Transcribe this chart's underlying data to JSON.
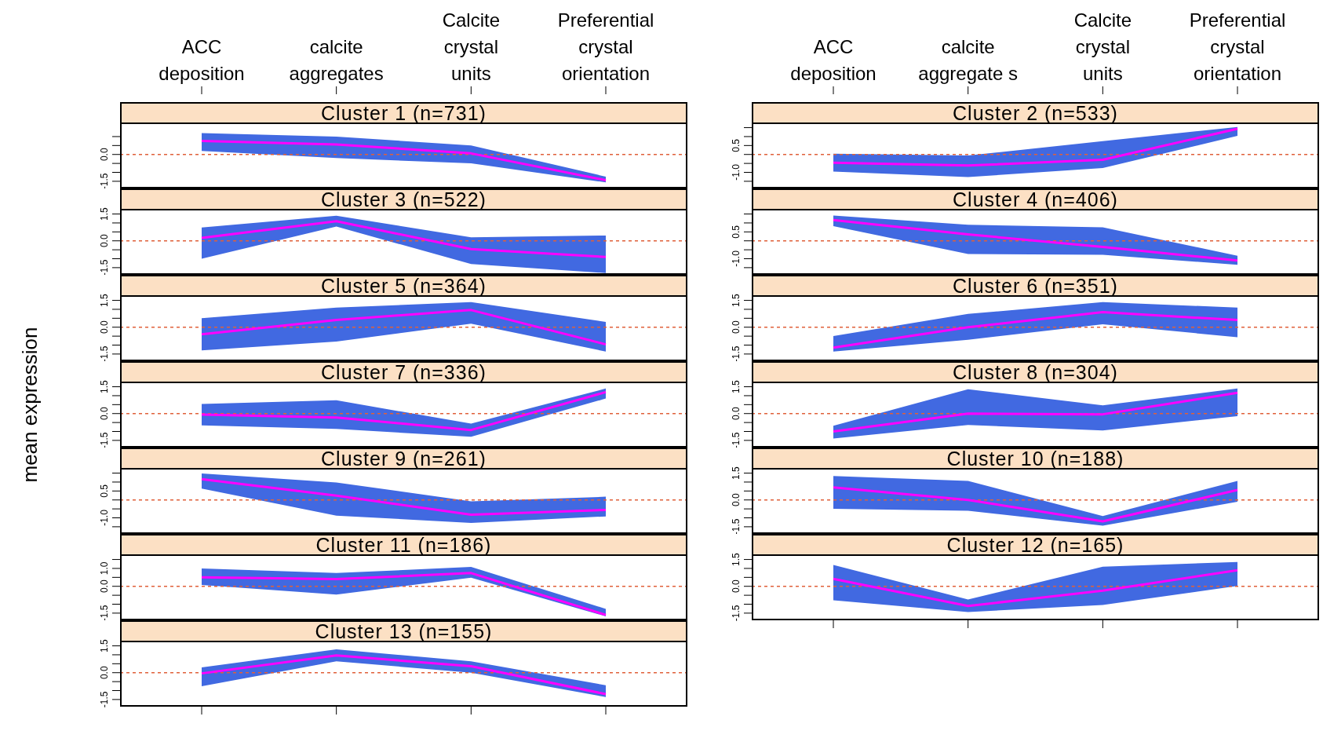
{
  "chart_data": [
    {
      "type": "line",
      "title": "Cluster 1 (n=731)",
      "categories": [
        "ACC deposition",
        "calcite aggregates",
        "Calcite crystal units",
        "Preferential crystal orientation"
      ],
      "marker": "none",
      "ylim": [
        -1.9,
        1.7
      ],
      "yticks": [
        {
          "value": -1.5,
          "label": "-1.5"
        },
        {
          "value": -1,
          "label": null
        },
        {
          "value": -0.5,
          "label": null
        },
        {
          "value": 0,
          "label": "0.0"
        },
        {
          "value": 0.5,
          "label": null
        },
        {
          "value": 1,
          "label": null
        }
      ],
      "ref_lines": [
        {
          "axis": "y",
          "value": 0,
          "color": "#e0603a",
          "line_style": "dashed"
        }
      ],
      "series": [
        {
          "color": "#ff00ff",
          "values": [
            0.76,
            0.56,
            0.06,
            -1.44
          ],
          "lower": [
            0.2,
            -0.2,
            -0.5,
            -1.56
          ],
          "upper": [
            1.2,
            1.0,
            0.5,
            -1.24
          ]
        }
      ]
    },
    {
      "type": "line",
      "title": "Cluster 2 (n=533)",
      "categories": [
        "ACC deposition",
        "calcite aggregate s",
        "Calcite crystal units",
        "Preferential crystal orientation"
      ],
      "marker": "none",
      "ylim": [
        -1.9,
        1.7
      ],
      "yticks": [
        {
          "value": -1.5,
          "label": null
        },
        {
          "value": -1,
          "label": "-1.0"
        },
        {
          "value": -0.5,
          "label": null
        },
        {
          "value": 0,
          "label": null
        },
        {
          "value": 0.5,
          "label": "0.5"
        },
        {
          "value": 1,
          "label": null
        },
        {
          "value": 1.5,
          "label": null
        }
      ],
      "ref_lines": [
        {
          "axis": "y",
          "value": 0,
          "color": "#e0603a",
          "line_style": "dashed"
        }
      ],
      "series": [
        {
          "color": "#ff00ff",
          "values": [
            -0.46,
            -0.62,
            -0.3,
            1.44
          ],
          "lower": [
            -0.96,
            -1.26,
            -0.76,
            1.04
          ],
          "upper": [
            0.04,
            -0.06,
            0.74,
            1.54
          ]
        }
      ]
    },
    {
      "type": "line",
      "title": "Cluster 3 (n=522)",
      "categories": [
        null,
        null,
        null,
        null
      ],
      "tick_labels": "y",
      "marker": "none",
      "ylim": [
        -1.9,
        1.7
      ],
      "yticks": [
        {
          "value": -1.5,
          "label": "-1.5"
        },
        {
          "value": -1,
          "label": null
        },
        {
          "value": -0.5,
          "label": null
        },
        {
          "value": 0,
          "label": "0.0"
        },
        {
          "value": 0.5,
          "label": null
        },
        {
          "value": 1,
          "label": null
        },
        {
          "value": 1.5,
          "label": "1.5"
        }
      ],
      "ref_lines": [
        {
          "axis": "y",
          "value": 0,
          "color": "#e0603a",
          "line_style": "dashed"
        }
      ],
      "series": [
        {
          "color": "#ff00ff",
          "values": [
            0.16,
            1.1,
            -0.46,
            -0.9
          ],
          "lower": [
            -1.0,
            0.8,
            -1.3,
            -1.8
          ],
          "upper": [
            0.74,
            1.4,
            0.2,
            0.3
          ]
        }
      ]
    },
    {
      "type": "line",
      "title": "Cluster 4 (n=406)",
      "categories": [
        null,
        null,
        null,
        null
      ],
      "tick_labels": "y",
      "marker": "none",
      "ylim": [
        -1.9,
        1.7
      ],
      "yticks": [
        {
          "value": -1.5,
          "label": null
        },
        {
          "value": -1,
          "label": "-1.0"
        },
        {
          "value": -0.5,
          "label": null
        },
        {
          "value": 0,
          "label": null
        },
        {
          "value": 0.5,
          "label": "0.5"
        },
        {
          "value": 1,
          "label": null
        },
        {
          "value": 1.5,
          "label": null
        }
      ],
      "ref_lines": [
        {
          "axis": "y",
          "value": 0,
          "color": "#e0603a",
          "line_style": "dashed"
        }
      ],
      "series": [
        {
          "color": "#ff00ff",
          "values": [
            1.16,
            0.36,
            -0.34,
            -1.1
          ],
          "lower": [
            0.82,
            -0.74,
            -0.78,
            -1.34
          ],
          "upper": [
            1.42,
            0.9,
            0.76,
            -0.84
          ]
        }
      ]
    },
    {
      "type": "line",
      "title": "Cluster 5 (n=364)",
      "categories": [
        null,
        null,
        null,
        null
      ],
      "tick_labels": "y",
      "marker": "none",
      "ylim": [
        -1.9,
        1.7
      ],
      "yticks": [
        {
          "value": -1.5,
          "label": "-1.5"
        },
        {
          "value": -1,
          "label": null
        },
        {
          "value": -0.5,
          "label": null
        },
        {
          "value": 0,
          "label": "0.0"
        },
        {
          "value": 0.5,
          "label": null
        },
        {
          "value": 1,
          "label": null
        },
        {
          "value": 1.5,
          "label": "1.5"
        }
      ],
      "ref_lines": [
        {
          "axis": "y",
          "value": 0,
          "color": "#e0603a",
          "line_style": "dashed"
        }
      ],
      "series": [
        {
          "color": "#ff00ff",
          "values": [
            -0.4,
            0.4,
            0.96,
            -0.96
          ],
          "lower": [
            -1.3,
            -0.8,
            0.2,
            -1.36
          ],
          "upper": [
            0.5,
            1.1,
            1.4,
            0.3
          ]
        }
      ]
    },
    {
      "type": "line",
      "title": "Cluster 6 (n=351)",
      "categories": [
        null,
        null,
        null,
        null
      ],
      "tick_labels": "y",
      "marker": "none",
      "ylim": [
        -1.9,
        1.7
      ],
      "yticks": [
        {
          "value": -1.5,
          "label": "-1.5"
        },
        {
          "value": -1,
          "label": null
        },
        {
          "value": -0.5,
          "label": null
        },
        {
          "value": 0,
          "label": "0.0"
        },
        {
          "value": 0.5,
          "label": null
        },
        {
          "value": 1,
          "label": null
        },
        {
          "value": 1.5,
          "label": "1.5"
        }
      ],
      "ref_lines": [
        {
          "axis": "y",
          "value": 0,
          "color": "#e0603a",
          "line_style": "dashed"
        }
      ],
      "series": [
        {
          "color": "#ff00ff",
          "values": [
            -1.14,
            0,
            0.84,
            0.4
          ],
          "lower": [
            -1.36,
            -0.7,
            0.16,
            -0.56
          ],
          "upper": [
            -0.5,
            0.74,
            1.4,
            1.1
          ]
        }
      ]
    },
    {
      "type": "line",
      "title": "Cluster 7 (n=336)",
      "ylabel": "mean expression",
      "categories": [
        null,
        null,
        null,
        null
      ],
      "tick_labels": "y",
      "marker": "none",
      "ylim": [
        -1.9,
        1.7
      ],
      "yticks": [
        {
          "value": -1.5,
          "label": "-1.5"
        },
        {
          "value": -1,
          "label": null
        },
        {
          "value": -0.5,
          "label": null
        },
        {
          "value": 0,
          "label": "0.0"
        },
        {
          "value": 0.5,
          "label": null
        },
        {
          "value": 1,
          "label": null
        },
        {
          "value": 1.5,
          "label": "1.5"
        }
      ],
      "ref_lines": [
        {
          "axis": "y",
          "value": 0,
          "color": "#e0603a",
          "line_style": "dashed"
        }
      ],
      "series": [
        {
          "color": "#ff00ff",
          "values": [
            -0.06,
            -0.22,
            -0.92,
            1.2
          ],
          "lower": [
            -0.66,
            -0.86,
            -1.3,
            0.84
          ],
          "upper": [
            0.54,
            0.74,
            -0.56,
            1.4
          ]
        }
      ]
    },
    {
      "type": "line",
      "title": "Cluster 8 (n=304)",
      "categories": [
        null,
        null,
        null,
        null
      ],
      "tick_labels": "y",
      "marker": "none",
      "ylim": [
        -1.9,
        1.7
      ],
      "yticks": [
        {
          "value": -1.5,
          "label": "-1.5"
        },
        {
          "value": -1,
          "label": null
        },
        {
          "value": -0.5,
          "label": null
        },
        {
          "value": 0,
          "label": "0.0"
        },
        {
          "value": 0.5,
          "label": null
        },
        {
          "value": 1,
          "label": null
        },
        {
          "value": 1.5,
          "label": "1.5"
        }
      ],
      "ref_lines": [
        {
          "axis": "y",
          "value": 0,
          "color": "#e0603a",
          "line_style": "dashed"
        }
      ],
      "series": [
        {
          "color": "#ff00ff",
          "values": [
            -1.0,
            0,
            -0.04,
            1.16
          ],
          "lower": [
            -1.4,
            -0.64,
            -0.94,
            -0.14
          ],
          "upper": [
            -0.68,
            1.36,
            0.46,
            1.4
          ]
        }
      ]
    },
    {
      "type": "line",
      "title": "Cluster 9 (n=261)",
      "categories": [
        null,
        null,
        null,
        null
      ],
      "tick_labels": "y",
      "marker": "none",
      "ylim": [
        -1.9,
        1.7
      ],
      "yticks": [
        {
          "value": -1.5,
          "label": null
        },
        {
          "value": -1,
          "label": "-1.0"
        },
        {
          "value": -0.5,
          "label": null
        },
        {
          "value": 0,
          "label": null
        },
        {
          "value": 0.5,
          "label": "0.5"
        },
        {
          "value": 1,
          "label": null
        },
        {
          "value": 1.5,
          "label": null
        }
      ],
      "ref_lines": [
        {
          "axis": "y",
          "value": 0,
          "color": "#e0603a",
          "line_style": "dashed"
        }
      ],
      "series": [
        {
          "color": "#ff00ff",
          "values": [
            1.16,
            0.24,
            -0.82,
            -0.56
          ],
          "lower": [
            0.64,
            -0.88,
            -1.28,
            -0.92
          ],
          "upper": [
            1.48,
            0.98,
            -0.08,
            0.18
          ]
        }
      ]
    },
    {
      "type": "line",
      "title": "Cluster 10 (n=188)",
      "categories": [
        null,
        null,
        null,
        null
      ],
      "tick_labels": "y",
      "marker": "none",
      "ylim": [
        -1.9,
        1.7
      ],
      "yticks": [
        {
          "value": -1.5,
          "label": "-1.5"
        },
        {
          "value": -1,
          "label": null
        },
        {
          "value": -0.5,
          "label": null
        },
        {
          "value": 0,
          "label": "0.0"
        },
        {
          "value": 0.5,
          "label": null
        },
        {
          "value": 1,
          "label": null
        },
        {
          "value": 1.5,
          "label": "1.5"
        }
      ],
      "ref_lines": [
        {
          "axis": "y",
          "value": 0,
          "color": "#e0603a",
          "line_style": "dashed"
        }
      ],
      "series": [
        {
          "color": "#ff00ff",
          "values": [
            0.7,
            0,
            -1.2,
            0.56
          ],
          "lower": [
            -0.5,
            -0.6,
            -1.44,
            -0.1
          ],
          "upper": [
            1.34,
            1.06,
            -0.9,
            1.06
          ]
        }
      ]
    },
    {
      "type": "line",
      "title": "Cluster 11 (n=186)",
      "categories": [
        null,
        null,
        null,
        null
      ],
      "tick_labels": "y",
      "marker": "none",
      "ylim": [
        -1.9,
        1.7
      ],
      "yticks": [
        {
          "value": -1.5,
          "label": "-1.5"
        },
        {
          "value": -1,
          "label": null
        },
        {
          "value": -0.5,
          "label": null
        },
        {
          "value": 0,
          "label": "0.0"
        },
        {
          "value": 0.5,
          "label": null
        },
        {
          "value": 1,
          "label": "1.0"
        },
        {
          "value": 1.5,
          "label": null
        }
      ],
      "ref_lines": [
        {
          "axis": "y",
          "value": 0,
          "color": "#e0603a",
          "line_style": "dashed"
        }
      ],
      "series": [
        {
          "color": "#ff00ff",
          "values": [
            0.5,
            0.4,
            0.74,
            -1.6
          ],
          "lower": [
            0.08,
            -0.46,
            0.48,
            -1.68
          ],
          "upper": [
            1.0,
            0.74,
            1.08,
            -1.26
          ]
        }
      ]
    },
    {
      "type": "line",
      "title": "Cluster 12 (n=165)",
      "categories": [
        null,
        null,
        null,
        null
      ],
      "tick_labels": "y",
      "marker": "none",
      "ylim": [
        -1.9,
        1.7
      ],
      "yticks": [
        {
          "value": -1.5,
          "label": "-1.5"
        },
        {
          "value": -1,
          "label": null
        },
        {
          "value": -0.5,
          "label": null
        },
        {
          "value": 0,
          "label": "0.0"
        },
        {
          "value": 0.5,
          "label": null
        },
        {
          "value": 1,
          "label": null
        },
        {
          "value": 1.5,
          "label": "1.5"
        }
      ],
      "ref_lines": [
        {
          "axis": "y",
          "value": 0,
          "color": "#e0603a",
          "line_style": "dashed"
        }
      ],
      "series": [
        {
          "color": "#ff00ff",
          "values": [
            0.42,
            -1.1,
            -0.24,
            0.9
          ],
          "lower": [
            -0.78,
            -1.44,
            -1.04,
            0.02
          ],
          "upper": [
            1.2,
            -0.74,
            1.1,
            1.36
          ]
        }
      ]
    },
    {
      "type": "line",
      "title": "Cluster 13 (n=155)",
      "categories": [
        null,
        null,
        null,
        null
      ],
      "tick_labels": "y",
      "marker": "none",
      "ylim": [
        -1.9,
        1.7
      ],
      "yticks": [
        {
          "value": -1.5,
          "label": "-1.5"
        },
        {
          "value": -1,
          "label": null
        },
        {
          "value": -0.5,
          "label": null
        },
        {
          "value": 0,
          "label": "0.0"
        },
        {
          "value": 0.5,
          "label": null
        },
        {
          "value": 1,
          "label": null
        },
        {
          "value": 1.5,
          "label": "1.5"
        }
      ],
      "ref_lines": [
        {
          "axis": "y",
          "value": 0,
          "color": "#e0603a",
          "line_style": "dashed"
        }
      ],
      "series": [
        {
          "color": "#ff00ff",
          "values": [
            -0.04,
            0.96,
            0.36,
            -1.2
          ],
          "lower": [
            -0.76,
            0.64,
            0,
            -1.36
          ],
          "upper": [
            0.3,
            1.3,
            0.64,
            -0.7
          ]
        }
      ]
    }
  ]
}
